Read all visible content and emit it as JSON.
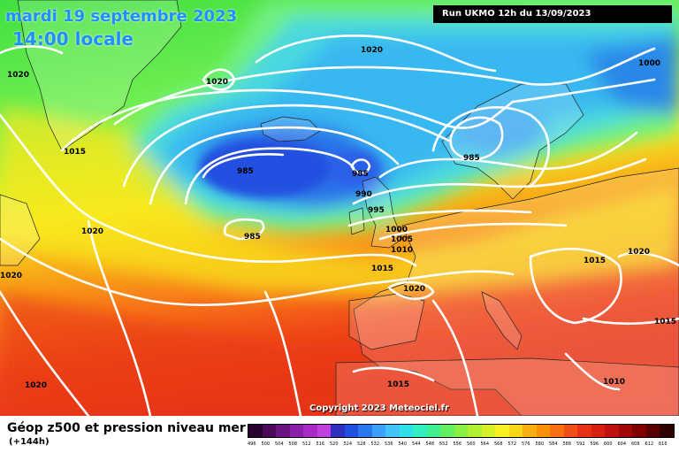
{
  "header": {
    "date": "mardi 19 septembre 2023",
    "time": "14:00 locale",
    "run": "Run UKMO 12h du 13/09/2023"
  },
  "footer": {
    "title": "Géop z500 et pression niveau mer",
    "forecast": "(+144h)",
    "copyright": "Copyright 2023 Meteociel.fr"
  },
  "legend": {
    "values": [
      "496",
      "500",
      "504",
      "508",
      "512",
      "516",
      "520",
      "524",
      "528",
      "532",
      "536",
      "540",
      "544",
      "548",
      "552",
      "556",
      "560",
      "564",
      "568",
      "572",
      "576",
      "580",
      "584",
      "588",
      "592",
      "596",
      "600",
      "604",
      "608",
      "612",
      "616"
    ],
    "colors": [
      "#2a0030",
      "#4b0a58",
      "#6a1580",
      "#8a20a8",
      "#a82ac8",
      "#c040e0",
      "#3030c0",
      "#2050e0",
      "#2a78f0",
      "#3aa0f8",
      "#40c4f8",
      "#30e0e8",
      "#30f0c0",
      "#40f090",
      "#60f060",
      "#88f040",
      "#b0f030",
      "#d8f028",
      "#f8f020",
      "#f8d818",
      "#f8b010",
      "#f89008",
      "#f87010",
      "#f05018",
      "#e83018",
      "#d82010",
      "#c01010",
      "#a00808",
      "#800000",
      "#5a0000",
      "#300000"
    ]
  },
  "isobars": [
    {
      "label": "1020"
    },
    {
      "label": "1020"
    },
    {
      "label": "1020"
    },
    {
      "label": "1000"
    },
    {
      "label": "1015"
    },
    {
      "label": "985"
    },
    {
      "label": "985"
    },
    {
      "label": "985"
    },
    {
      "label": "990"
    },
    {
      "label": "995"
    },
    {
      "label": "1020"
    },
    {
      "label": "985"
    },
    {
      "label": "1000"
    },
    {
      "label": "1005"
    },
    {
      "label": "1010"
    },
    {
      "label": "1015"
    },
    {
      "label": "1015"
    },
    {
      "label": "1020"
    },
    {
      "label": "1020"
    },
    {
      "label": "1020"
    },
    {
      "label": "1015"
    },
    {
      "label": "1015"
    },
    {
      "label": "1010"
    },
    {
      "label": "1020"
    }
  ]
}
